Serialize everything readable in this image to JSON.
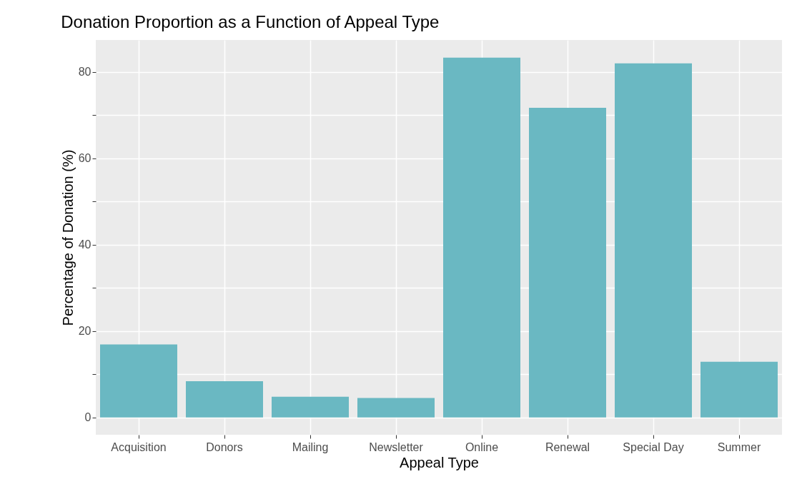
{
  "chart_data": {
    "type": "bar",
    "title": "Donation Proportion as a Function of Appeal Type",
    "xlabel": "Appeal Type",
    "ylabel": "Percentage of Donation (%)",
    "categories": [
      "Acquisition",
      "Donors",
      "Mailing",
      "Newsletter",
      "Online",
      "Renewal",
      "Special Day",
      "Summer"
    ],
    "values": [
      16.9,
      8.4,
      4.8,
      4.5,
      83.3,
      71.7,
      82.0,
      12.9
    ],
    "color": "#6ab8c2",
    "ylim": [
      -4,
      87.4
    ],
    "yticks": [
      0,
      {
        "value": 10,
        "label": null
      },
      20,
      {
        "value": 30,
        "label": null
      },
      40,
      {
        "value": 50,
        "label": null
      },
      60,
      {
        "value": 70,
        "label": null
      },
      80
    ],
    "grid": true
  }
}
